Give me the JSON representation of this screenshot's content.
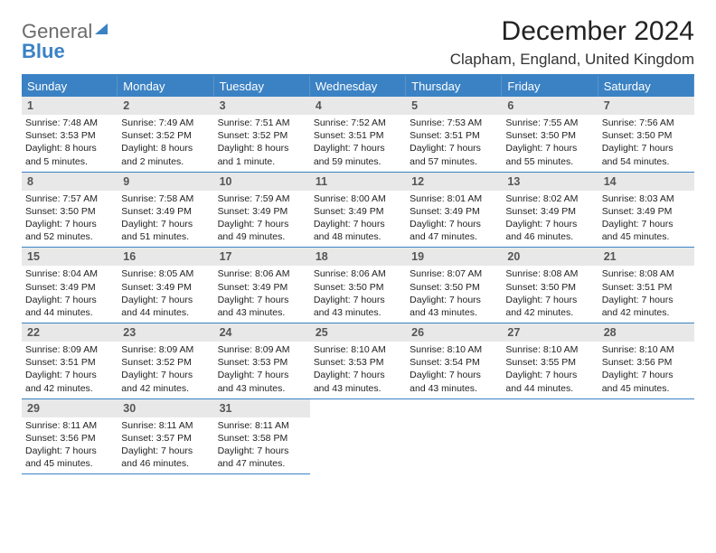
{
  "logo": {
    "line1": "General",
    "line2": "Blue"
  },
  "title": {
    "month": "December 2024",
    "location": "Clapham, England, United Kingdom"
  },
  "colors": {
    "accent": "#3b82c4",
    "daynum_bg": "#e8e8e8",
    "text": "#222222",
    "logo_gray": "#6b6b6b"
  },
  "dow": [
    "Sunday",
    "Monday",
    "Tuesday",
    "Wednesday",
    "Thursday",
    "Friday",
    "Saturday"
  ],
  "days": [
    {
      "n": "1",
      "sr": "Sunrise: 7:48 AM",
      "ss": "Sunset: 3:53 PM",
      "dl": "Daylight: 8 hours and 5 minutes."
    },
    {
      "n": "2",
      "sr": "Sunrise: 7:49 AM",
      "ss": "Sunset: 3:52 PM",
      "dl": "Daylight: 8 hours and 2 minutes."
    },
    {
      "n": "3",
      "sr": "Sunrise: 7:51 AM",
      "ss": "Sunset: 3:52 PM",
      "dl": "Daylight: 8 hours and 1 minute."
    },
    {
      "n": "4",
      "sr": "Sunrise: 7:52 AM",
      "ss": "Sunset: 3:51 PM",
      "dl": "Daylight: 7 hours and 59 minutes."
    },
    {
      "n": "5",
      "sr": "Sunrise: 7:53 AM",
      "ss": "Sunset: 3:51 PM",
      "dl": "Daylight: 7 hours and 57 minutes."
    },
    {
      "n": "6",
      "sr": "Sunrise: 7:55 AM",
      "ss": "Sunset: 3:50 PM",
      "dl": "Daylight: 7 hours and 55 minutes."
    },
    {
      "n": "7",
      "sr": "Sunrise: 7:56 AM",
      "ss": "Sunset: 3:50 PM",
      "dl": "Daylight: 7 hours and 54 minutes."
    },
    {
      "n": "8",
      "sr": "Sunrise: 7:57 AM",
      "ss": "Sunset: 3:50 PM",
      "dl": "Daylight: 7 hours and 52 minutes."
    },
    {
      "n": "9",
      "sr": "Sunrise: 7:58 AM",
      "ss": "Sunset: 3:49 PM",
      "dl": "Daylight: 7 hours and 51 minutes."
    },
    {
      "n": "10",
      "sr": "Sunrise: 7:59 AM",
      "ss": "Sunset: 3:49 PM",
      "dl": "Daylight: 7 hours and 49 minutes."
    },
    {
      "n": "11",
      "sr": "Sunrise: 8:00 AM",
      "ss": "Sunset: 3:49 PM",
      "dl": "Daylight: 7 hours and 48 minutes."
    },
    {
      "n": "12",
      "sr": "Sunrise: 8:01 AM",
      "ss": "Sunset: 3:49 PM",
      "dl": "Daylight: 7 hours and 47 minutes."
    },
    {
      "n": "13",
      "sr": "Sunrise: 8:02 AM",
      "ss": "Sunset: 3:49 PM",
      "dl": "Daylight: 7 hours and 46 minutes."
    },
    {
      "n": "14",
      "sr": "Sunrise: 8:03 AM",
      "ss": "Sunset: 3:49 PM",
      "dl": "Daylight: 7 hours and 45 minutes."
    },
    {
      "n": "15",
      "sr": "Sunrise: 8:04 AM",
      "ss": "Sunset: 3:49 PM",
      "dl": "Daylight: 7 hours and 44 minutes."
    },
    {
      "n": "16",
      "sr": "Sunrise: 8:05 AM",
      "ss": "Sunset: 3:49 PM",
      "dl": "Daylight: 7 hours and 44 minutes."
    },
    {
      "n": "17",
      "sr": "Sunrise: 8:06 AM",
      "ss": "Sunset: 3:49 PM",
      "dl": "Daylight: 7 hours and 43 minutes."
    },
    {
      "n": "18",
      "sr": "Sunrise: 8:06 AM",
      "ss": "Sunset: 3:50 PM",
      "dl": "Daylight: 7 hours and 43 minutes."
    },
    {
      "n": "19",
      "sr": "Sunrise: 8:07 AM",
      "ss": "Sunset: 3:50 PM",
      "dl": "Daylight: 7 hours and 43 minutes."
    },
    {
      "n": "20",
      "sr": "Sunrise: 8:08 AM",
      "ss": "Sunset: 3:50 PM",
      "dl": "Daylight: 7 hours and 42 minutes."
    },
    {
      "n": "21",
      "sr": "Sunrise: 8:08 AM",
      "ss": "Sunset: 3:51 PM",
      "dl": "Daylight: 7 hours and 42 minutes."
    },
    {
      "n": "22",
      "sr": "Sunrise: 8:09 AM",
      "ss": "Sunset: 3:51 PM",
      "dl": "Daylight: 7 hours and 42 minutes."
    },
    {
      "n": "23",
      "sr": "Sunrise: 8:09 AM",
      "ss": "Sunset: 3:52 PM",
      "dl": "Daylight: 7 hours and 42 minutes."
    },
    {
      "n": "24",
      "sr": "Sunrise: 8:09 AM",
      "ss": "Sunset: 3:53 PM",
      "dl": "Daylight: 7 hours and 43 minutes."
    },
    {
      "n": "25",
      "sr": "Sunrise: 8:10 AM",
      "ss": "Sunset: 3:53 PM",
      "dl": "Daylight: 7 hours and 43 minutes."
    },
    {
      "n": "26",
      "sr": "Sunrise: 8:10 AM",
      "ss": "Sunset: 3:54 PM",
      "dl": "Daylight: 7 hours and 43 minutes."
    },
    {
      "n": "27",
      "sr": "Sunrise: 8:10 AM",
      "ss": "Sunset: 3:55 PM",
      "dl": "Daylight: 7 hours and 44 minutes."
    },
    {
      "n": "28",
      "sr": "Sunrise: 8:10 AM",
      "ss": "Sunset: 3:56 PM",
      "dl": "Daylight: 7 hours and 45 minutes."
    },
    {
      "n": "29",
      "sr": "Sunrise: 8:11 AM",
      "ss": "Sunset: 3:56 PM",
      "dl": "Daylight: 7 hours and 45 minutes."
    },
    {
      "n": "30",
      "sr": "Sunrise: 8:11 AM",
      "ss": "Sunset: 3:57 PM",
      "dl": "Daylight: 7 hours and 46 minutes."
    },
    {
      "n": "31",
      "sr": "Sunrise: 8:11 AM",
      "ss": "Sunset: 3:58 PM",
      "dl": "Daylight: 7 hours and 47 minutes."
    }
  ],
  "trailing_empty": 4
}
